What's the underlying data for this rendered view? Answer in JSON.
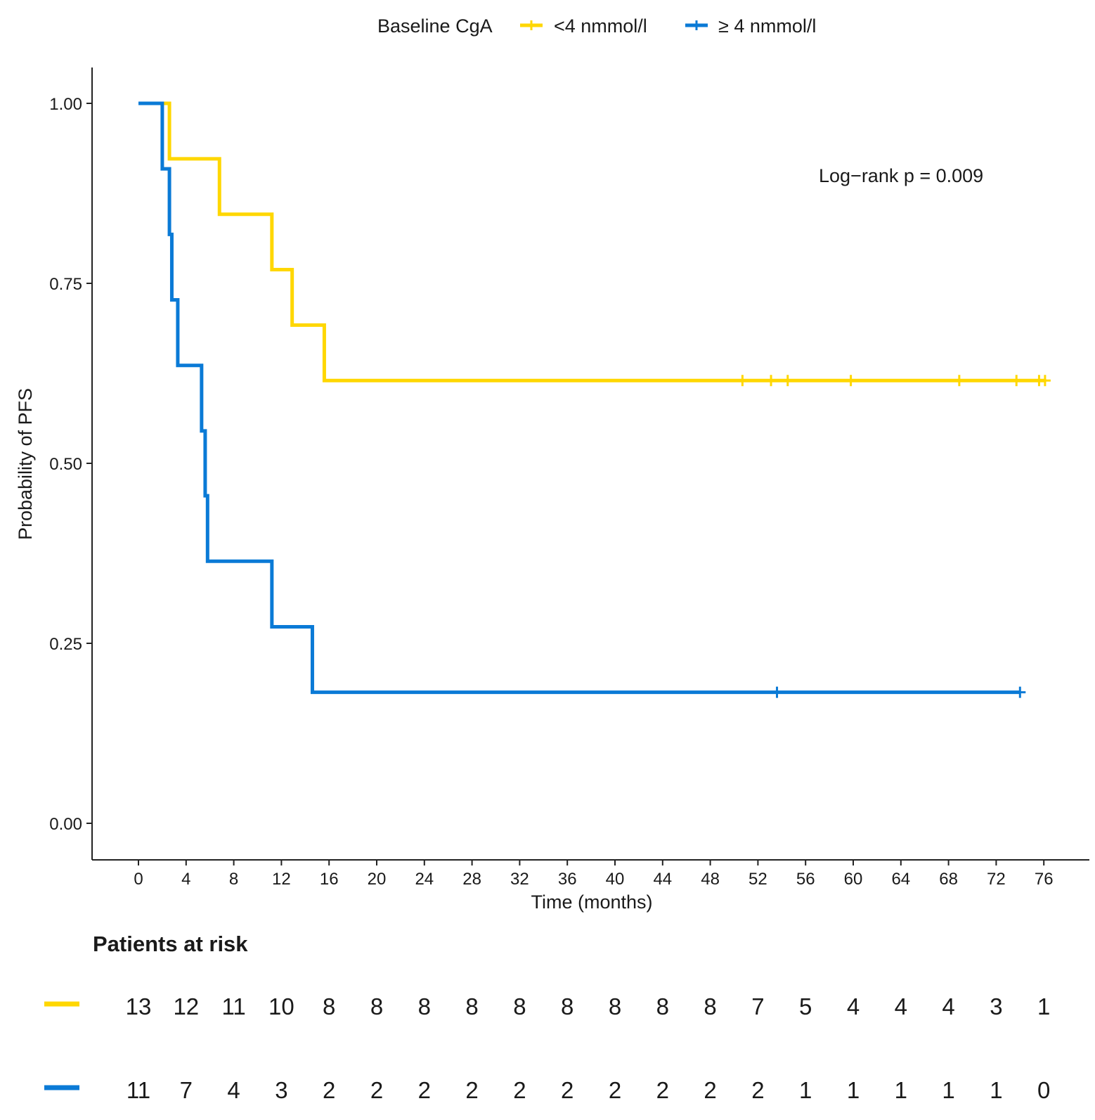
{
  "chart_data": {
    "type": "line",
    "subtype": "kaplan-meier step",
    "title": "",
    "xlabel": "Time (months)",
    "ylabel": "Probability of PFS",
    "xlim": [
      -4,
      80
    ],
    "ylim": [
      -0.05,
      1.05
    ],
    "x_ticks": [
      0,
      4,
      8,
      12,
      16,
      20,
      24,
      28,
      32,
      36,
      40,
      44,
      48,
      52,
      56,
      60,
      64,
      68,
      72,
      76
    ],
    "y_ticks": [
      0,
      0.25,
      0.5,
      0.75,
      1
    ],
    "y_tick_labels": [
      "0.00",
      "0.25",
      "0.50",
      "0.75",
      "1.00"
    ],
    "legend": {
      "title": "Baseline CgA",
      "placement": "top"
    },
    "annotation": "Log−rank p = 0.009",
    "series": [
      {
        "name": "<4  nmmol/l",
        "color": "#FFD700",
        "steps": [
          [
            0,
            1.0
          ],
          [
            2.6,
            0.923
          ],
          [
            6.8,
            0.846
          ],
          [
            11.2,
            0.769
          ],
          [
            12.9,
            0.692
          ],
          [
            15.6,
            0.615
          ],
          [
            76.2,
            0.615
          ]
        ],
        "censor_times": [
          50.7,
          53.1,
          54.5,
          59.8,
          68.9,
          73.7,
          75.6,
          76.1
        ]
      },
      {
        "name": "≥ 4 nmmol/l",
        "color": "#0A7AD6",
        "steps": [
          [
            0,
            1.0
          ],
          [
            2.0,
            0.909
          ],
          [
            2.6,
            0.818
          ],
          [
            2.8,
            0.727
          ],
          [
            3.3,
            0.636
          ],
          [
            5.3,
            0.545
          ],
          [
            5.6,
            0.455
          ],
          [
            5.8,
            0.364
          ],
          [
            11.2,
            0.273
          ],
          [
            14.6,
            0.182
          ],
          [
            74.0,
            0.182
          ]
        ],
        "censor_times": [
          53.6,
          74.0
        ]
      }
    ]
  },
  "risk_table": {
    "title": "Patients at risk",
    "rows": [
      {
        "group": "<4  nmmol/l",
        "color": "#FFD700",
        "counts": [
          13,
          12,
          11,
          10,
          8,
          8,
          8,
          8,
          8,
          8,
          8,
          8,
          8,
          7,
          5,
          4,
          4,
          4,
          3,
          1
        ]
      },
      {
        "group": "≥ 4 nmmol/l",
        "color": "#0A7AD6",
        "counts": [
          11,
          7,
          4,
          3,
          2,
          2,
          2,
          2,
          2,
          2,
          2,
          2,
          2,
          2,
          1,
          1,
          1,
          1,
          1,
          0
        ]
      }
    ]
  }
}
